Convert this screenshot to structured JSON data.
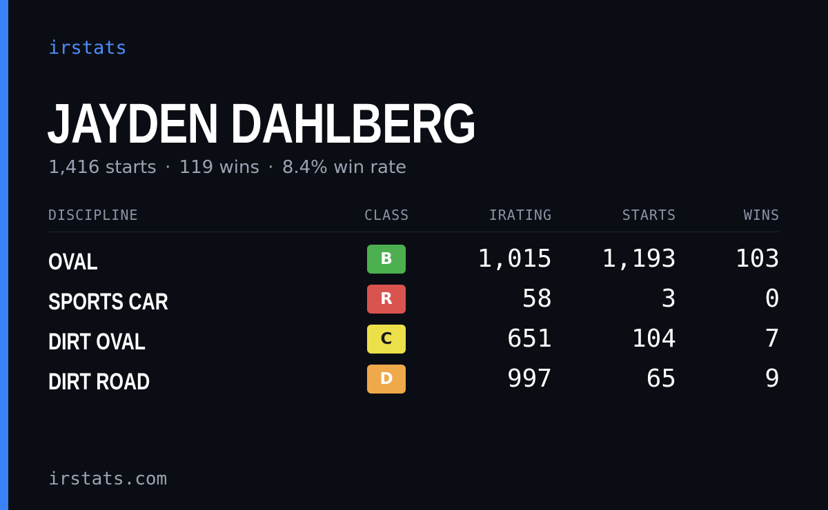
{
  "brand": "irstats",
  "driver": {
    "name": "JAYDEN DAHLBERG",
    "starts_text": "1,416 starts",
    "wins_text": "119 wins",
    "win_rate_text": "8.4% win rate",
    "separator": "·"
  },
  "table": {
    "headers": {
      "discipline": "DISCIPLINE",
      "class": "CLASS",
      "irating": "IRATING",
      "starts": "STARTS",
      "wins": "WINS"
    },
    "rows": [
      {
        "discipline": "OVAL",
        "class": "B",
        "class_color": "#4caf50",
        "class_text_color": "#ffffff",
        "irating": "1,015",
        "starts": "1,193",
        "wins": "103"
      },
      {
        "discipline": "SPORTS CAR",
        "class": "R",
        "class_color": "#d9534f",
        "class_text_color": "#ffffff",
        "irating": "58",
        "starts": "3",
        "wins": "0"
      },
      {
        "discipline": "DIRT OVAL",
        "class": "C",
        "class_color": "#ebe04a",
        "class_text_color": "#1a1a1a",
        "irating": "651",
        "starts": "104",
        "wins": "7"
      },
      {
        "discipline": "DIRT ROAD",
        "class": "D",
        "class_color": "#eea94b",
        "class_text_color": "#ffffff",
        "irating": "997",
        "starts": "65",
        "wins": "9"
      }
    ]
  },
  "footer": {
    "url": "irstats.com"
  },
  "colors": {
    "background": "#0b0d14",
    "accent": "#3b82f6",
    "brand": "#4c8df6",
    "muted": "#9aa3b2"
  }
}
